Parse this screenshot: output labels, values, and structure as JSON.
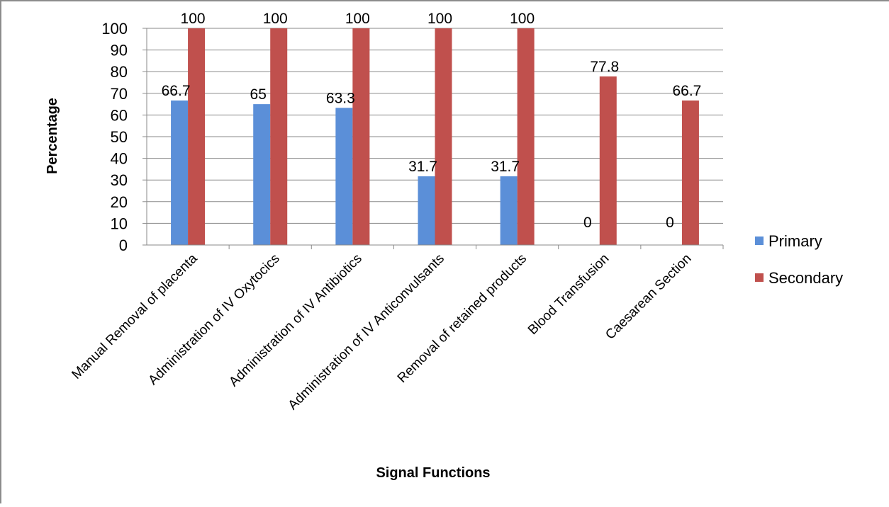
{
  "chart_data": {
    "type": "bar",
    "title": "",
    "xlabel": "Signal Functions",
    "ylabel": "Percentage",
    "ylim": [
      0,
      100
    ],
    "ytick_step": 10,
    "yticks": [
      "0",
      "10",
      "20",
      "30",
      "40",
      "50",
      "60",
      "70",
      "80",
      "90",
      "100"
    ],
    "grid": true,
    "legend_position": "right",
    "categories": [
      "Manual Removal of placenta",
      "Administration of IV Oxytocics",
      "Administration of IV Antibiotics",
      "Administration of IV Anticonvulsants",
      "Removal of retained products",
      "Blood Transfusion",
      "Caesarean Section"
    ],
    "series": [
      {
        "name": "Primary",
        "color": "#5b8fd8",
        "values": [
          66.7,
          65,
          63.3,
          31.7,
          31.7,
          0,
          0
        ],
        "data_labels": [
          "66.7",
          "65",
          "63.3",
          "31.7",
          "31.7",
          "0",
          "0"
        ]
      },
      {
        "name": "Secondary",
        "color": "#c0504d",
        "values": [
          100,
          100,
          100,
          100,
          100,
          77.8,
          66.7
        ],
        "data_labels": [
          "100",
          "100",
          "100",
          "100",
          "100",
          "77.8",
          "66.7"
        ]
      }
    ]
  }
}
